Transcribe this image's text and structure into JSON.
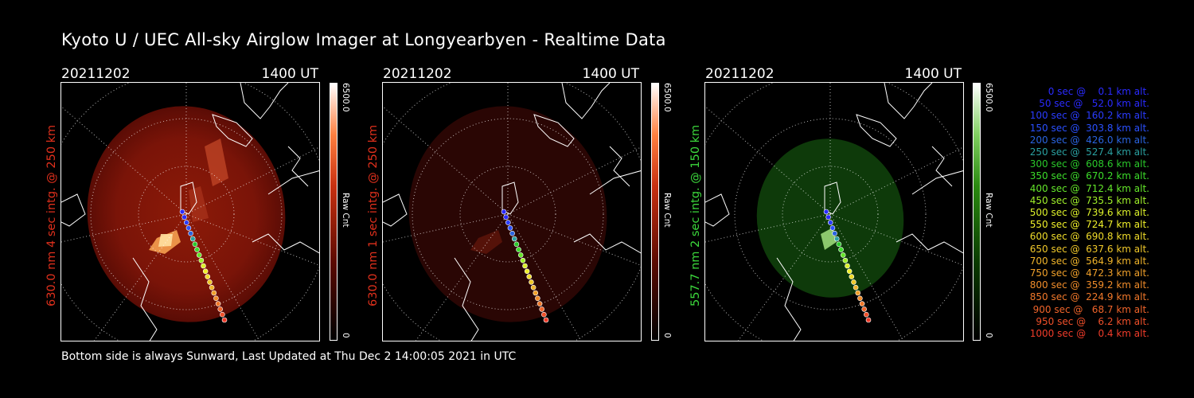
{
  "title": "Kyoto U / UEC All-sky Airglow Imager at Longyearbyen - Realtime Data",
  "footer": "Bottom side is always Sunward, Last Updated at Thu Dec  2 14:00:05 2021 in UTC",
  "panels": [
    {
      "date": "20211202",
      "time": "1400 UT",
      "label": "630.0 nm 4 sec intg. @ 250 km",
      "label_color": "#e0301c",
      "cbar_max": "6500.0",
      "cbar_unit": "Raw Cnt",
      "cbar_min": "0",
      "colormap": "red",
      "intensity": "bright"
    },
    {
      "date": "20211202",
      "time": "1400 UT",
      "label": "630.0 nm 1 sec intg. @ 250 km",
      "label_color": "#e0301c",
      "cbar_max": "6500.0",
      "cbar_unit": "Raw Cnt",
      "cbar_min": "0",
      "colormap": "red",
      "intensity": "dim"
    },
    {
      "date": "20211202",
      "time": "1400 UT",
      "label": "557.7 nm 2 sec intg. @ 150 km",
      "label_color": "#3cd83c",
      "cbar_max": "6500.0",
      "cbar_unit": "Raw Cnt",
      "cbar_min": "0",
      "colormap": "green",
      "intensity": "medium"
    }
  ],
  "legend": [
    {
      "text": "0 sec @    0.1 km alt.",
      "color": "#2a2aff"
    },
    {
      "text": "50 sec @   52.0 km alt.",
      "color": "#2a2aff"
    },
    {
      "text": "100 sec @  160.2 km alt.",
      "color": "#2a3cff"
    },
    {
      "text": "150 sec @  303.8 km alt.",
      "color": "#2a50ff"
    },
    {
      "text": "200 sec @  426.0 km alt.",
      "color": "#2a64e0"
    },
    {
      "text": "250 sec @  527.4 km alt.",
      "color": "#2aa0a0"
    },
    {
      "text": "300 sec @  608.6 km alt.",
      "color": "#2ac82a"
    },
    {
      "text": "350 sec @  670.2 km alt.",
      "color": "#3cdc2a"
    },
    {
      "text": "400 sec @  712.4 km alt.",
      "color": "#64e62a"
    },
    {
      "text": "450 sec @  735.5 km alt.",
      "color": "#a0f02a"
    },
    {
      "text": "500 sec @  739.6 km alt.",
      "color": "#dcf02a"
    },
    {
      "text": "550 sec @  724.7 km alt.",
      "color": "#f0f02a"
    },
    {
      "text": "600 sec @  690.8 km alt.",
      "color": "#f0dc2a"
    },
    {
      "text": "650 sec @  637.6 km alt.",
      "color": "#f0c82a"
    },
    {
      "text": "700 sec @  564.9 km alt.",
      "color": "#f0b42a"
    },
    {
      "text": "750 sec @  472.3 km alt.",
      "color": "#f0a02a"
    },
    {
      "text": "800 sec @  359.2 km alt.",
      "color": "#f08c2a"
    },
    {
      "text": "850 sec @  224.9 km alt.",
      "color": "#f0782a"
    },
    {
      "text": "900 sec @   68.7 km alt.",
      "color": "#f0642a"
    },
    {
      "text": "950 sec @    6.2 km alt.",
      "color": "#f0502a"
    },
    {
      "text": "1000 sec @    0.4 km alt.",
      "color": "#f03c2a"
    }
  ]
}
